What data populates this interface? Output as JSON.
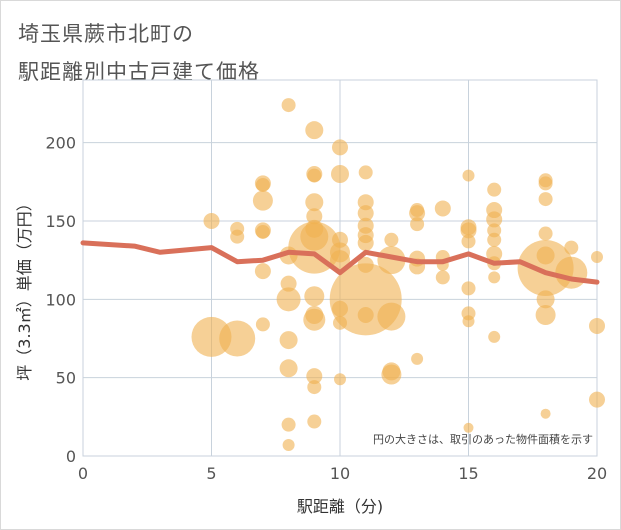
{
  "chart_data": {
    "type": "scatter",
    "title_line1": "埼玉県蕨市北町の",
    "title_line2": "駅距離別中古戸建て価格",
    "xlabel": "駅距離（分)",
    "ylabel": "坪（3.3㎡）単価（万円）",
    "note": "円の大きさは、取引のあった物件面積を示す",
    "xlim": [
      0,
      20
    ],
    "ylim": [
      0,
      240
    ],
    "x_ticks": [
      0,
      5,
      10,
      15,
      20
    ],
    "y_ticks": [
      0,
      50,
      100,
      150,
      200
    ],
    "grid": true,
    "colors": {
      "bubble": "#f0b050",
      "bubble_opacity": 0.6,
      "line": "#d9705a",
      "grid": "#c8d2dc",
      "plot_border": "#c8d2dc"
    },
    "bubbles": [
      {
        "x": 5,
        "y": 150,
        "s": 8
      },
      {
        "x": 5,
        "y": 76,
        "s": 20
      },
      {
        "x": 6,
        "y": 145,
        "s": 7
      },
      {
        "x": 6,
        "y": 140,
        "s": 7
      },
      {
        "x": 6,
        "y": 75,
        "s": 18
      },
      {
        "x": 7,
        "y": 174,
        "s": 8
      },
      {
        "x": 7,
        "y": 173,
        "s": 7
      },
      {
        "x": 7,
        "y": 163,
        "s": 10
      },
      {
        "x": 7,
        "y": 144,
        "s": 8
      },
      {
        "x": 7,
        "y": 143,
        "s": 7
      },
      {
        "x": 7,
        "y": 118,
        "s": 8
      },
      {
        "x": 7,
        "y": 84,
        "s": 7
      },
      {
        "x": 8,
        "y": 224,
        "s": 7
      },
      {
        "x": 8,
        "y": 128,
        "s": 9
      },
      {
        "x": 8,
        "y": 110,
        "s": 8
      },
      {
        "x": 8,
        "y": 100,
        "s": 12
      },
      {
        "x": 8,
        "y": 74,
        "s": 9
      },
      {
        "x": 8,
        "y": 56,
        "s": 9
      },
      {
        "x": 8,
        "y": 20,
        "s": 7
      },
      {
        "x": 8,
        "y": 7,
        "s": 6
      },
      {
        "x": 9,
        "y": 208,
        "s": 9
      },
      {
        "x": 9,
        "y": 180,
        "s": 8
      },
      {
        "x": 9,
        "y": 179,
        "s": 7
      },
      {
        "x": 9,
        "y": 162,
        "s": 9
      },
      {
        "x": 9,
        "y": 153,
        "s": 8
      },
      {
        "x": 9,
        "y": 145,
        "s": 9
      },
      {
        "x": 9,
        "y": 140,
        "s": 14
      },
      {
        "x": 9,
        "y": 133,
        "s": 26
      },
      {
        "x": 9,
        "y": 102,
        "s": 10
      },
      {
        "x": 9,
        "y": 90,
        "s": 9
      },
      {
        "x": 9,
        "y": 87,
        "s": 11
      },
      {
        "x": 9,
        "y": 51,
        "s": 8
      },
      {
        "x": 9,
        "y": 44,
        "s": 7
      },
      {
        "x": 9,
        "y": 22,
        "s": 7
      },
      {
        "x": 10,
        "y": 197,
        "s": 8
      },
      {
        "x": 10,
        "y": 180,
        "s": 9
      },
      {
        "x": 10,
        "y": 138,
        "s": 8
      },
      {
        "x": 10,
        "y": 130,
        "s": 10
      },
      {
        "x": 10,
        "y": 125,
        "s": 10
      },
      {
        "x": 10,
        "y": 94,
        "s": 8
      },
      {
        "x": 10,
        "y": 85,
        "s": 7
      },
      {
        "x": 10,
        "y": 49,
        "s": 6
      },
      {
        "x": 11,
        "y": 181,
        "s": 7
      },
      {
        "x": 11,
        "y": 162,
        "s": 8
      },
      {
        "x": 11,
        "y": 155,
        "s": 8
      },
      {
        "x": 11,
        "y": 147,
        "s": 8
      },
      {
        "x": 11,
        "y": 141,
        "s": 8
      },
      {
        "x": 11,
        "y": 136,
        "s": 8
      },
      {
        "x": 11,
        "y": 122,
        "s": 8
      },
      {
        "x": 11,
        "y": 100,
        "s": 36
      },
      {
        "x": 11,
        "y": 90,
        "s": 8
      },
      {
        "x": 12,
        "y": 138,
        "s": 7
      },
      {
        "x": 12,
        "y": 125,
        "s": 14
      },
      {
        "x": 12,
        "y": 89,
        "s": 14
      },
      {
        "x": 12,
        "y": 54,
        "s": 9
      },
      {
        "x": 12,
        "y": 52,
        "s": 10
      },
      {
        "x": 13,
        "y": 157,
        "s": 7
      },
      {
        "x": 13,
        "y": 155,
        "s": 8
      },
      {
        "x": 13,
        "y": 148,
        "s": 7
      },
      {
        "x": 13,
        "y": 126,
        "s": 8
      },
      {
        "x": 13,
        "y": 121,
        "s": 8
      },
      {
        "x": 13,
        "y": 62,
        "s": 6
      },
      {
        "x": 14,
        "y": 158,
        "s": 8
      },
      {
        "x": 14,
        "y": 127,
        "s": 7
      },
      {
        "x": 14,
        "y": 122,
        "s": 6
      },
      {
        "x": 14,
        "y": 114,
        "s": 7
      },
      {
        "x": 15,
        "y": 179,
        "s": 6
      },
      {
        "x": 15,
        "y": 146,
        "s": 8
      },
      {
        "x": 15,
        "y": 144,
        "s": 8
      },
      {
        "x": 15,
        "y": 137,
        "s": 7
      },
      {
        "x": 15,
        "y": 107,
        "s": 7
      },
      {
        "x": 15,
        "y": 91,
        "s": 7
      },
      {
        "x": 15,
        "y": 86,
        "s": 6
      },
      {
        "x": 15,
        "y": 18,
        "s": 5
      },
      {
        "x": 16,
        "y": 170,
        "s": 7
      },
      {
        "x": 16,
        "y": 157,
        "s": 8
      },
      {
        "x": 16,
        "y": 151,
        "s": 8
      },
      {
        "x": 16,
        "y": 144,
        "s": 7
      },
      {
        "x": 16,
        "y": 138,
        "s": 7
      },
      {
        "x": 16,
        "y": 129,
        "s": 8
      },
      {
        "x": 16,
        "y": 123,
        "s": 7
      },
      {
        "x": 16,
        "y": 114,
        "s": 6
      },
      {
        "x": 16,
        "y": 76,
        "s": 6
      },
      {
        "x": 18,
        "y": 176,
        "s": 7
      },
      {
        "x": 18,
        "y": 174,
        "s": 7
      },
      {
        "x": 18,
        "y": 164,
        "s": 7
      },
      {
        "x": 18,
        "y": 142,
        "s": 7
      },
      {
        "x": 18,
        "y": 128,
        "s": 9
      },
      {
        "x": 18,
        "y": 120,
        "s": 28
      },
      {
        "x": 18,
        "y": 100,
        "s": 9
      },
      {
        "x": 18,
        "y": 90,
        "s": 10
      },
      {
        "x": 18,
        "y": 27,
        "s": 5
      },
      {
        "x": 19,
        "y": 133,
        "s": 7
      },
      {
        "x": 19,
        "y": 117,
        "s": 16
      },
      {
        "x": 20,
        "y": 127,
        "s": 6
      },
      {
        "x": 20,
        "y": 83,
        "s": 8
      },
      {
        "x": 20,
        "y": 36,
        "s": 8
      }
    ],
    "line": {
      "x": [
        0,
        2,
        3,
        5,
        6,
        7,
        8,
        9,
        10,
        11,
        12,
        13,
        14,
        15,
        16,
        17,
        18,
        19,
        20
      ],
      "y": [
        136,
        134,
        130,
        133,
        124,
        125,
        130,
        129,
        117,
        130,
        127,
        124,
        124,
        129,
        123,
        124,
        117,
        113,
        111
      ]
    }
  }
}
